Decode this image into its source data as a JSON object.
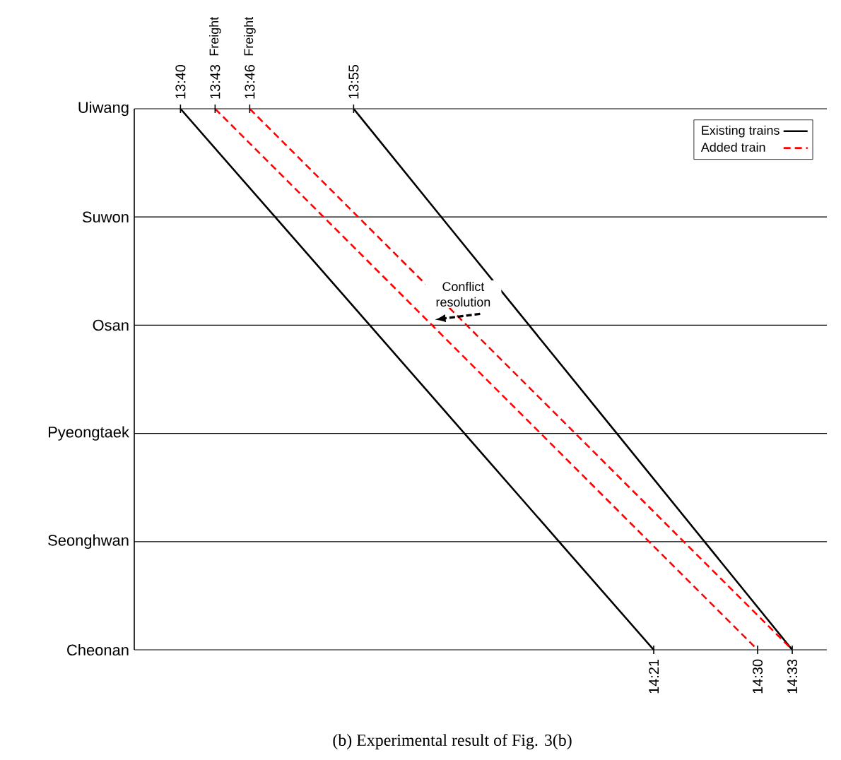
{
  "chart_data": {
    "type": "line",
    "orientation": "horizontal",
    "categories": [
      "Uiwang",
      "Suwon",
      "Osan",
      "Pyeongtaek",
      "Seonghwan",
      "Cheonan"
    ],
    "xlim": [
      13.6,
      14.6
    ],
    "xticks": [
      {
        "value": 14.35,
        "label": "14:21"
      },
      {
        "value": 14.5,
        "label": "14:30"
      },
      {
        "value": 14.55,
        "label": "14:33"
      }
    ],
    "x2lim": [
      13.6,
      14.6
    ],
    "x2ticks": [
      {
        "value": 13.6667,
        "label": "13:40"
      },
      {
        "value": 13.7167,
        "label": "13:43"
      },
      {
        "value": 13.7667,
        "label": "13:46"
      },
      {
        "value": 13.9167,
        "label": "13:55"
      }
    ],
    "grid": "y",
    "legend": "top right",
    "series": [
      {
        "name": "Existing trains",
        "color": "#000000",
        "line_style": "solid",
        "values": [
          13.6667,
          13.8033,
          13.94,
          14.0767,
          14.2133,
          14.35
        ]
      },
      {
        "color": "#000000",
        "line_style": "solid",
        "values": [
          13.9167,
          14.0433,
          14.17,
          14.2967,
          14.4233,
          14.55
        ]
      },
      {
        "name": "Added train",
        "color": "#ff0000",
        "line_style": "dashed",
        "values": [
          13.7167,
          13.8733,
          14.03,
          14.1867,
          14.3433,
          14.5
        ]
      },
      {
        "color": "#ff0000",
        "line_style": "dashed",
        "values": [
          13.7667,
          13.9233,
          14.08,
          14.2367,
          14.3933,
          14.55
        ]
      }
    ],
    "annotations": [
      "Freight",
      "Freight",
      {
        "text": "Conflict resolution",
        "x": 14.03,
        "y": "Osan"
      },
      "(b)    Experimental result of Fig. 3(b)"
    ]
  }
}
